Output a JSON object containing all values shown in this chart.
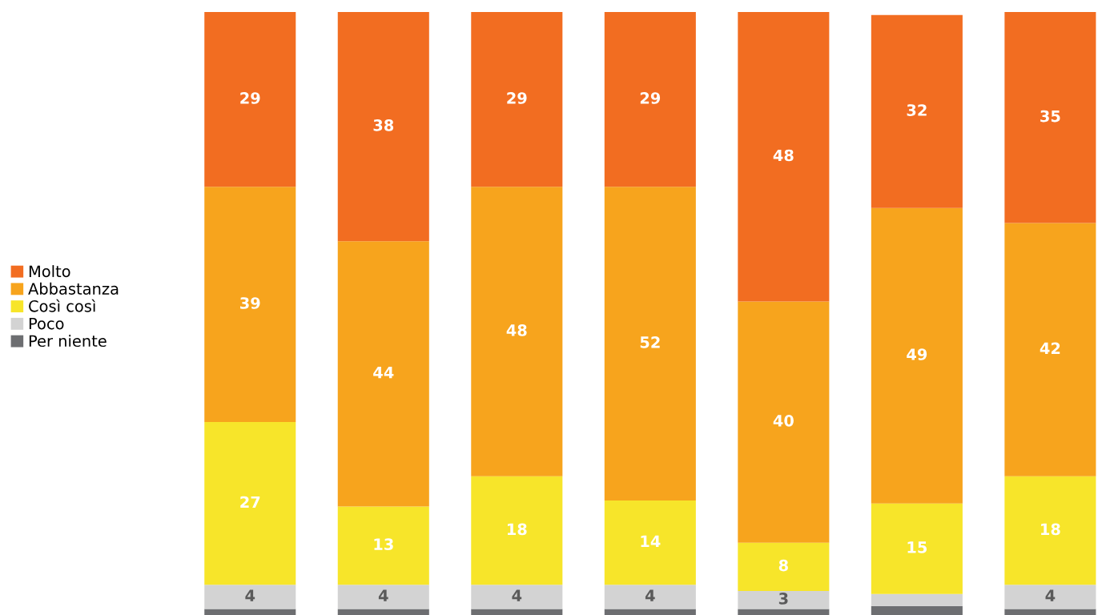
{
  "chart_data": {
    "type": "bar",
    "stacked": true,
    "categories": [
      null,
      null,
      null,
      null,
      null,
      null,
      null
    ],
    "ylim": [
      0,
      100
    ],
    "series": [
      {
        "name": "Per niente",
        "color": "#6d6e71",
        "values": [
          1,
          1,
          1,
          1,
          1,
          1.5,
          1
        ],
        "value_labels": [
          null,
          null,
          null,
          null,
          null,
          null,
          null
        ]
      },
      {
        "name": "Poco",
        "color": "#d3d3d3",
        "values": [
          4,
          4,
          4,
          4,
          3,
          2,
          4
        ],
        "value_labels": [
          "4",
          "4",
          "4",
          "4",
          "3",
          null,
          "4"
        ]
      },
      {
        "name": "Così così",
        "color": "#f7e52a",
        "values": [
          27,
          13,
          18,
          14,
          8,
          15,
          18
        ],
        "value_labels": [
          "27",
          "13",
          "18",
          "14",
          "8",
          "15",
          "18"
        ]
      },
      {
        "name": "Abbastanza",
        "color": "#f7a41d",
        "values": [
          39,
          44,
          48,
          52,
          40,
          49,
          42
        ],
        "value_labels": [
          "39",
          "44",
          "48",
          "52",
          "40",
          "49",
          "42"
        ]
      },
      {
        "name": "Molto",
        "color": "#f26d21",
        "values": [
          29,
          38,
          29,
          29,
          48,
          32,
          35
        ],
        "value_labels": [
          "29",
          "38",
          "29",
          "29",
          "48",
          "32",
          "35"
        ]
      }
    ],
    "legend": "left",
    "grid": false
  }
}
